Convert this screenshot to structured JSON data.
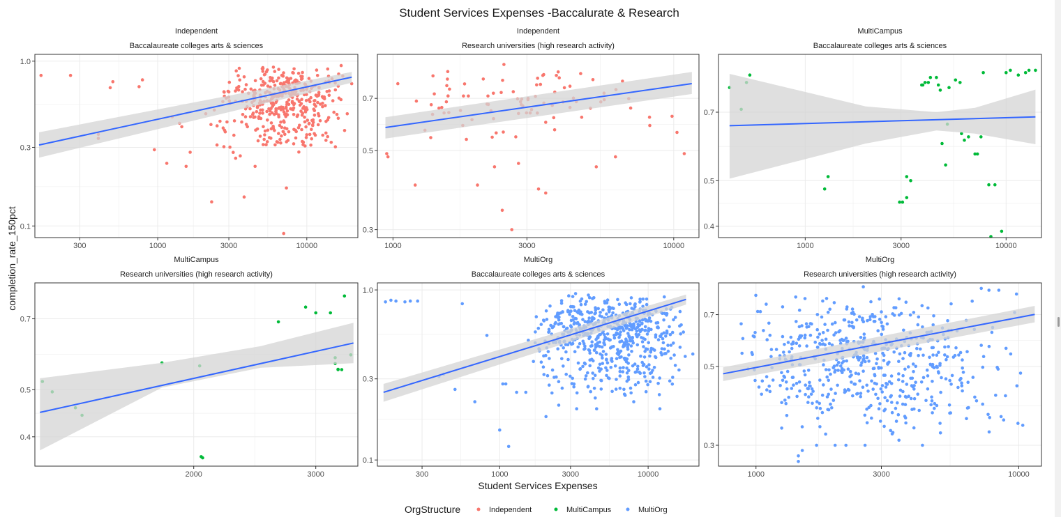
{
  "figure": {
    "title": "Student Services Expenses -Baccalurate & Research",
    "xlabel": "Student Services Expenses",
    "ylabel": "completion_rate_150pct"
  },
  "legend": {
    "title": "OrgStructure",
    "position": "bottom",
    "items": [
      {
        "label": "Independent",
        "color": "#f8766d"
      },
      {
        "label": "MultiCampus",
        "color": "#00ba38"
      },
      {
        "label": "MultiOrg",
        "color": "#619cff"
      }
    ]
  },
  "colors": {
    "fit_line": "#3366ff",
    "ribbon": "#d4d4d4",
    "border": "#333333",
    "grid": "#ebebeb"
  },
  "chart_data": [
    {
      "type": "scatter",
      "strip1": "Independent",
      "strip2": "Baccalaureate colleges arts & sciences",
      "series_name": "Independent",
      "color": "#f8766d",
      "x_scale": "log10",
      "y_scale": "log10",
      "xlim": [
        150,
        22000
      ],
      "ylim": [
        0.085,
        1.1
      ],
      "x_ticks": [
        300,
        1000,
        3000,
        10000
      ],
      "x_tick_labels": [
        "300",
        "1000",
        "3000",
        "10000"
      ],
      "y_ticks": [
        0.1,
        0.3,
        1.0
      ],
      "y_tick_labels": [
        "0.1",
        "0.3",
        "1.0"
      ],
      "fit": {
        "x": [
          160,
          20000
        ],
        "y": [
          0.31,
          0.8
        ]
      },
      "band": {
        "x": [
          160,
          20000
        ],
        "lower": [
          0.26,
          0.74
        ],
        "upper": [
          0.37,
          0.86
        ]
      },
      "points": {
        "x": [
          165,
          260,
          400,
          400,
          500,
          480,
          750,
          790,
          950,
          1150,
          1250,
          1400,
          1450,
          1550,
          1650,
          2100,
          2300,
          2500,
          3800,
          4500,
          7000,
          7300,
          8000,
          12000,
          14000,
          17000,
          20000
        ],
        "y": [
          0.82,
          0.82,
          0.36,
          0.34,
          0.75,
          0.69,
          0.7,
          0.77,
          0.29,
          0.24,
          0.46,
          0.42,
          0.4,
          0.23,
          0.28,
          0.48,
          0.14,
          0.31,
          0.15,
          0.23,
          0.09,
          0.17,
          0.57,
          0.62,
          0.81,
          0.94,
          0.73
        ]
      },
      "cloud": {
        "n": 420,
        "x_range": [
          2200,
          19000
        ],
        "x_center": 7000,
        "y_range": [
          0.25,
          0.96
        ],
        "y_center": 0.68,
        "seed": 11
      }
    },
    {
      "type": "scatter",
      "strip1": "Independent",
      "strip2": "Research universities (high research activity)",
      "series_name": "Independent",
      "color": "#f8766d",
      "x_scale": "log10",
      "y_scale": "log10",
      "xlim": [
        880,
        12300
      ],
      "ylim": [
        0.285,
        0.93
      ],
      "x_ticks": [
        1000,
        3000,
        10000
      ],
      "x_tick_labels": [
        "1000",
        "3000",
        "10000"
      ],
      "y_ticks": [
        0.3,
        0.5,
        0.7
      ],
      "y_tick_labels": [
        "0.3",
        "0.5",
        "0.7"
      ],
      "fit": {
        "x": [
          940,
          11600
        ],
        "y": [
          0.58,
          0.77
        ]
      },
      "band": {
        "x": [
          940,
          11600
        ],
        "lower": [
          0.54,
          0.72
        ],
        "upper": [
          0.62,
          0.83
        ]
      },
      "points": {
        "x": [
          950,
          960,
          1200,
          1300,
          2000,
          2300,
          2450,
          2650,
          2800,
          3300,
          3500,
          3500,
          5300,
          6200,
          8200,
          10900
        ],
        "y": [
          0.49,
          0.48,
          0.4,
          0.57,
          0.4,
          0.45,
          0.34,
          0.3,
          0.46,
          0.39,
          0.38,
          0.6,
          0.45,
          0.48,
          0.62,
          0.49
        ]
      },
      "cloud": {
        "n": 85,
        "x_range": [
          1000,
          11000
        ],
        "x_center": 3000,
        "y_range": [
          0.5,
          0.9
        ],
        "y_center": 0.68,
        "seed": 23
      }
    },
    {
      "type": "scatter",
      "strip1": "MultiCampus",
      "strip2": "Baccalaureate colleges arts & sciences",
      "series_name": "MultiCampus",
      "color": "#00ba38",
      "x_scale": "log10",
      "y_scale": "log10",
      "xlim": [
        370,
        15000
      ],
      "ylim": [
        0.378,
        0.93
      ],
      "x_ticks": [
        1000,
        3000,
        10000
      ],
      "x_tick_labels": [
        "1000",
        "3000",
        "10000"
      ],
      "y_ticks": [
        0.4,
        0.5,
        0.7
      ],
      "y_tick_labels": [
        "0.4",
        "0.5",
        "0.7"
      ],
      "fit": {
        "x": [
          420,
          14000
        ],
        "y": [
          0.655,
          0.684
        ]
      },
      "band": {
        "x": [
          420,
          2000,
          4500,
          7000,
          14000
        ],
        "lower": [
          0.505,
          0.6,
          0.64,
          0.63,
          0.598
        ],
        "upper": [
          0.845,
          0.72,
          0.7,
          0.715,
          0.782
        ]
      },
      "points": {
        "x": [
          420,
          480,
          510,
          530,
          1250,
          1300,
          2950,
          3050,
          3200,
          3200,
          3350,
          3800,
          3850,
          3950,
          4100,
          4200,
          4500,
          4600,
          4700,
          4800,
          5000,
          5100,
          5200,
          5600,
          5900,
          6000,
          6200,
          6500,
          7000,
          7200,
          7500,
          7700,
          8200,
          8400,
          8800,
          9500,
          10000,
          10500,
          11500,
          12500,
          13000,
          14000
        ],
        "y": [
          0.79,
          0.71,
          0.81,
          0.84,
          0.48,
          0.51,
          0.45,
          0.45,
          0.51,
          0.46,
          0.5,
          0.8,
          0.8,
          0.81,
          0.81,
          0.83,
          0.83,
          0.8,
          0.78,
          0.6,
          0.54,
          0.66,
          0.79,
          0.82,
          0.81,
          0.63,
          0.61,
          0.62,
          0.57,
          0.57,
          0.62,
          0.85,
          0.49,
          0.38,
          0.49,
          0.39,
          0.85,
          0.86,
          0.84,
          0.85,
          0.86,
          0.86
        ]
      }
    },
    {
      "type": "scatter",
      "strip1": "MultiCampus",
      "strip2": "Research universities (high research activity)",
      "series_name": "MultiCampus",
      "color": "#00ba38",
      "x_scale": "log10",
      "y_scale": "log10",
      "xlim": [
        1180,
        3450
      ],
      "ylim": [
        0.348,
        0.83
      ],
      "x_ticks": [
        2000,
        3000
      ],
      "x_tick_labels": [
        "2000",
        "3000"
      ],
      "y_ticks": [
        0.4,
        0.5,
        0.7
      ],
      "y_tick_labels": [
        "0.4",
        "0.5",
        "0.7"
      ],
      "fit": {
        "x": [
          1200,
          3400
        ],
        "y": [
          0.449,
          0.624
        ]
      },
      "band": {
        "x": [
          1200,
          1800,
          2500,
          3400
        ],
        "lower": [
          0.375,
          0.505,
          0.555,
          0.567
        ],
        "upper": [
          0.528,
          0.568,
          0.615,
          0.687
        ]
      },
      "points": {
        "x": [
          1210,
          1250,
          1350,
          1380,
          1800,
          2040,
          2050,
          2060,
          2650,
          2900,
          3000,
          3150,
          3200,
          3200,
          3230,
          3230,
          3270,
          3300,
          3370
        ],
        "y": [
          0.52,
          0.495,
          0.459,
          0.443,
          0.568,
          0.56,
          0.364,
          0.362,
          0.69,
          0.74,
          0.72,
          0.72,
          0.582,
          0.566,
          0.551,
          0.55,
          0.55,
          0.78,
          0.59
        ]
      }
    },
    {
      "type": "scatter",
      "strip1": "MultiOrg",
      "strip2": "Baccalaureate colleges arts & sciences",
      "series_name": "MultiOrg",
      "color": "#619cff",
      "x_scale": "log10",
      "y_scale": "log10",
      "xlim": [
        150,
        22000
      ],
      "ylim": [
        0.092,
        1.1
      ],
      "x_ticks": [
        300,
        1000,
        3000,
        10000
      ],
      "x_tick_labels": [
        "300",
        "1000",
        "3000",
        "10000"
      ],
      "y_ticks": [
        0.1,
        0.3,
        1.0
      ],
      "y_tick_labels": [
        "0.1",
        "0.3",
        "1.0"
      ],
      "fit": {
        "x": [
          165,
          18000
        ],
        "y": [
          0.25,
          0.88
        ]
      },
      "band": {
        "x": [
          165,
          18000
        ],
        "lower": [
          0.22,
          0.82
        ],
        "upper": [
          0.28,
          0.94
        ]
      },
      "points": {
        "x": [
          170,
          185,
          200,
          230,
          250,
          280,
          390,
          420,
          500,
          560,
          680,
          820,
          1000,
          1050,
          1100,
          1150,
          1250,
          1300,
          1500,
          2050,
          2500,
          3300,
          4500,
          7000,
          8000,
          12000,
          20000
        ],
        "y": [
          0.85,
          0.87,
          0.86,
          0.85,
          0.86,
          0.86,
          0.31,
          0.32,
          0.26,
          0.83,
          0.22,
          0.54,
          0.15,
          0.28,
          0.28,
          0.12,
          0.09,
          0.25,
          0.25,
          0.18,
          0.21,
          0.2,
          0.2,
          0.24,
          0.22,
          0.2,
          0.42
        ]
      },
      "cloud": {
        "n": 620,
        "x_range": [
          1400,
          19000
        ],
        "x_center": 6500,
        "y_range": [
          0.22,
          0.97
        ],
        "y_center": 0.65,
        "seed": 37
      }
    },
    {
      "type": "scatter",
      "strip1": "MultiOrg",
      "strip2": "Research universities (high research activity)",
      "series_name": "MultiOrg",
      "color": "#619cff",
      "x_scale": "log10",
      "y_scale": "log10",
      "xlim": [
        720,
        12200
      ],
      "ylim": [
        0.262,
        0.86
      ],
      "x_ticks": [
        1000,
        3000,
        10000
      ],
      "x_tick_labels": [
        "1000",
        "3000",
        "10000"
      ],
      "y_ticks": [
        0.3,
        0.5,
        0.7
      ],
      "y_tick_labels": [
        "0.3",
        "0.5",
        "0.7"
      ],
      "fit": {
        "x": [
          750,
          11500
        ],
        "y": [
          0.477,
          0.701
        ]
      },
      "band": {
        "x": [
          750,
          11500
        ],
        "lower": [
          0.455,
          0.666
        ],
        "upper": [
          0.497,
          0.741
        ]
      },
      "points": {
        "x": [
          1450,
          1450,
          1500,
          1700,
          2000,
          2200,
          2600,
          3500,
          4300,
          5500,
          6800,
          7200,
          7700,
          8400,
          9800
        ],
        "y": [
          0.27,
          0.28,
          0.29,
          0.3,
          0.3,
          0.3,
          0.3,
          0.31,
          0.3,
          0.37,
          0.41,
          0.83,
          0.82,
          0.82,
          0.8
        ]
      },
      "cloud": {
        "n": 560,
        "x_range": [
          760,
          11000
        ],
        "x_center": 2500,
        "y_range": [
          0.3,
          0.84
        ],
        "y_center": 0.55,
        "seed": 53
      }
    }
  ]
}
